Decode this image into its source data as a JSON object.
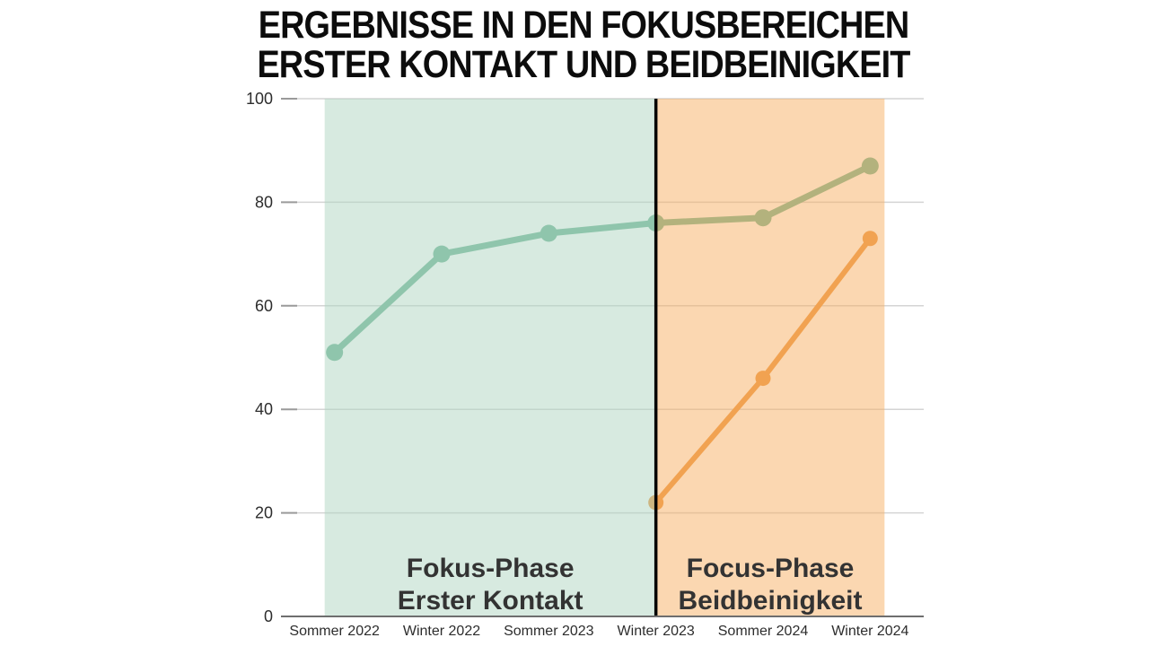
{
  "title": {
    "line1": "ERGEBNISSE IN DEN FOKUSBEREICHEN",
    "line2": "ERSTER KONTAKT UND BEIDBEINIGKEIT"
  },
  "chart_data": {
    "type": "line",
    "title": "Ergebnisse in den Fokusbereichen Erster Kontakt und Beidbeinigkeit",
    "categories": [
      "Sommer 2022",
      "Winter 2022",
      "Sommer 2023",
      "Winter 2023",
      "Sommer 2024",
      "Winter 2024"
    ],
    "series": [
      {
        "id": "erster-kontakt",
        "name": "Erster Kontakt",
        "color": "#6fb596",
        "line_width": 7,
        "dot_radius": 9.5,
        "values": [
          51,
          70,
          74,
          76,
          77,
          87
        ]
      },
      {
        "id": "beidbeinigkeit",
        "name": "Beidbeinigkeit",
        "color": "#ea953f",
        "line_width": 6,
        "dot_radius": 8.5,
        "values": [
          null,
          null,
          null,
          22,
          46,
          73
        ]
      }
    ],
    "xlabel": "",
    "ylabel": "",
    "ylim": [
      0,
      100
    ],
    "yticks": [
      0,
      20,
      40,
      60,
      80,
      100
    ],
    "grid": true,
    "legend": "none",
    "regions": [
      {
        "id": "erster-kontakt",
        "label_line1": "Fokus-Phase",
        "label_line2": "Erster Kontakt",
        "from_category": "Sommer 2022",
        "to_category": "Winter 2023",
        "fill": "rgba(176,214,193,0.5)",
        "label_color": "#96c3ab",
        "edge_pad_left": 11,
        "edge_pad_right": 0
      },
      {
        "id": "beidbeinigkeit",
        "label_line1": "Focus-Phase",
        "label_line2": "Beidbeinigkeit",
        "from_category": "Winter 2023",
        "to_category": "Winter 2024",
        "fill": "rgba(248,176,100,0.5)",
        "label_color": "#f0a85d",
        "edge_pad_left": 0,
        "edge_pad_right": 16
      }
    ],
    "divider": {
      "at_category": "Winter 2023",
      "color": "#000000",
      "width": 3.5
    },
    "axis_colors": {
      "gridline": "#d4d4d4",
      "tick": "#9a9a9a",
      "axis_line": "#6e6e6e"
    }
  }
}
